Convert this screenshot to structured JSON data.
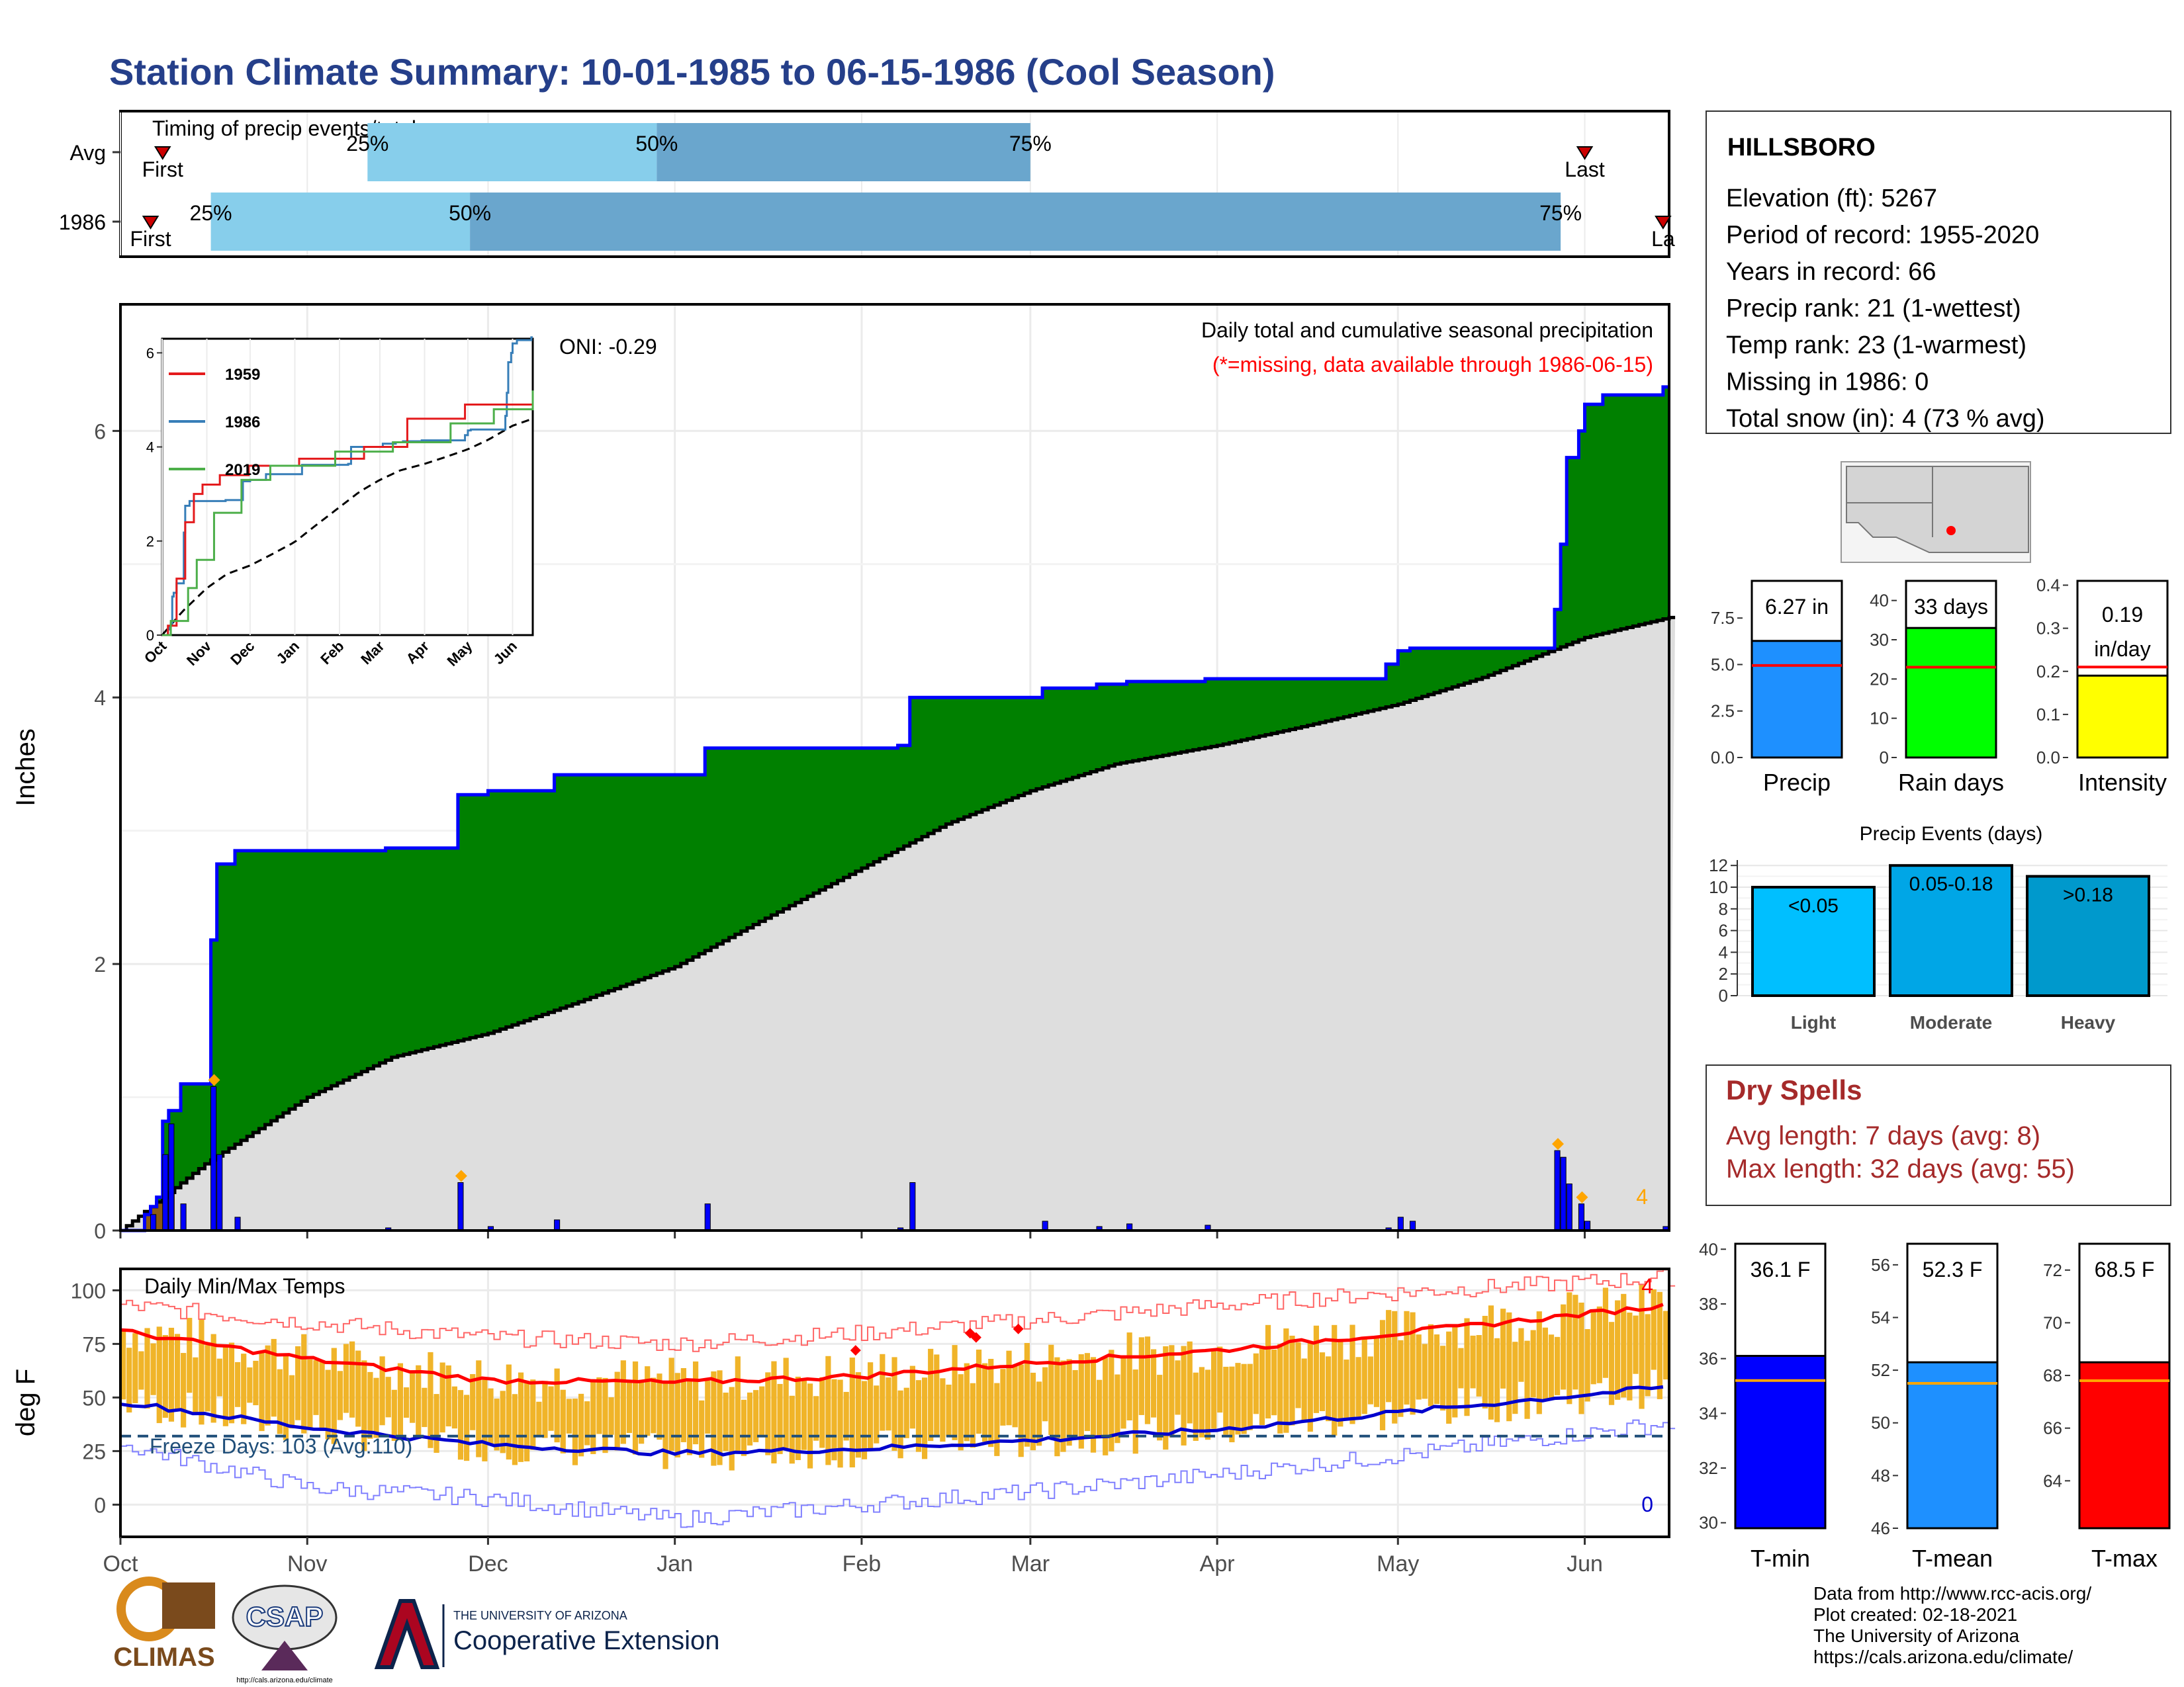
{
  "title": "Station Climate Summary: 10-01-1985 to 06-15-1986 (Cool Season)",
  "months": [
    "Oct",
    "Nov",
    "Dec",
    "Jan",
    "Feb",
    "Mar",
    "Apr",
    "May",
    "Jun"
  ],
  "colors": {
    "title": "#253f8a",
    "green": "#008000",
    "blue": "#0000ff",
    "gray": "#dedede",
    "brown": "#8b5a14",
    "orange": "#ffa500",
    "red": "#ff0000",
    "lightblue": "#87ceeb",
    "midblue": "#6aa6cd",
    "tempbar": "#f0b429",
    "dryred": "#a52a2a",
    "freeze": "#1f4e79"
  },
  "timing": {
    "label": "Timing of precip events/totals",
    "rows": [
      {
        "name": "Avg",
        "first": "First",
        "last": "Last",
        "p25": "25%",
        "p50": "50%",
        "p75": "75%",
        "first_date": "1985-10-08",
        "p25_date": "1985-11-11",
        "p50_date": "1985-12-29",
        "p75_date": "1986-03-01",
        "last_date": "1986-06-01"
      },
      {
        "name": "1986",
        "first": "First",
        "last": "La",
        "p25": "25%",
        "p50": "50%",
        "p75": "75%",
        "first_date": "1985-10-06",
        "p25_date": "1985-10-16",
        "p50_date": "1985-11-28",
        "p75_date": "1986-05-28",
        "last_date": "1986-06-14"
      }
    ]
  },
  "precip_panel": {
    "ylabel": "Inches",
    "heading": "Daily total and cumulative seasonal precipitation",
    "missing_note": "(*=missing, data available through 1986-06-15)",
    "oni": "ONI: -0.29",
    "snow_count": "4",
    "yticks": [
      "0",
      "2",
      "4",
      "6"
    ]
  },
  "inset": {
    "yticks": [
      "0",
      "2",
      "4",
      "6"
    ],
    "months": [
      "Oct",
      "Nov",
      "Dec",
      "Jan",
      "Feb",
      "Mar",
      "Apr",
      "May",
      "Jun"
    ],
    "legend": [
      {
        "name": "1959",
        "color": "#e41a1c"
      },
      {
        "name": "1986",
        "color": "#377eb8"
      },
      {
        "name": "2019",
        "color": "#4daf4a"
      }
    ]
  },
  "temp_panel": {
    "ylabel": "deg F",
    "heading": "Daily Min/Max Temps",
    "freeze_text": "Freeze Days: 103 (Avg:110)",
    "max_record_count": "4",
    "min_record_count": "0",
    "yticks": [
      "0",
      "25",
      "50",
      "75",
      "100"
    ]
  },
  "station": {
    "name": "HILLSBORO",
    "lines": [
      "Elevation (ft): 5267",
      "Period of record: 1955-2020",
      "Years in record: 66",
      "Precip rank: 21 (1-wettest)",
      "Temp rank: 23 (1-warmest)",
      "Missing in 1986: 0",
      "Total snow (in): 4 (73 % avg)"
    ]
  },
  "bars": [
    {
      "label": "Precip",
      "value_text": "6.27 in",
      "value": 6.27,
      "avg": 4.95,
      "ticks": [
        "0.0",
        "2.5",
        "5.0",
        "7.5"
      ],
      "ymax": 9.5,
      "color": "#1e90ff"
    },
    {
      "label": "Rain days",
      "value_text": "33 days",
      "value": 33,
      "avg": 23,
      "ticks": [
        "0",
        "10",
        "20",
        "30",
        "40"
      ],
      "ymax": 45,
      "color": "#00ff00"
    },
    {
      "label": "Intensity",
      "value_text": "0.19 in/day",
      "value_line1": "0.19",
      "value_line2": "in/day",
      "value": 0.19,
      "avg": 0.21,
      "ticks": [
        "0.0",
        "0.1",
        "0.2",
        "0.3",
        "0.4"
      ],
      "ymax": 0.41,
      "color": "#ffff00"
    }
  ],
  "events": {
    "title": "Precip Events (days)",
    "ticks": [
      "0",
      "2",
      "4",
      "6",
      "8",
      "10",
      "12"
    ],
    "items": [
      {
        "label": "Light",
        "range": "<0.05",
        "value": 10,
        "color": "#00bfff"
      },
      {
        "label": "Moderate",
        "range": "0.05-0.18",
        "value": 12,
        "color": "#00a6e6"
      },
      {
        "label": "Heavy",
        "range": ">0.18",
        "value": 11,
        "color": "#0099cc"
      }
    ]
  },
  "dry_spells": {
    "title": "Dry Spells",
    "avg": "Avg length: 7 days (avg: 8)",
    "max": "Max length: 32 days (avg: 55)"
  },
  "temps": [
    {
      "label": "T-min",
      "value_text": "36.1 F",
      "value": 36.1,
      "avg": 35.2,
      "ticks": [
        "30",
        "32",
        "34",
        "36",
        "38",
        "40"
      ],
      "ymin": 29.8,
      "ymax": 40.2,
      "color": "#0000ff"
    },
    {
      "label": "T-mean",
      "value_text": "52.3 F",
      "value": 52.3,
      "avg": 51.5,
      "ticks": [
        "46",
        "48",
        "50",
        "52",
        "54",
        "56"
      ],
      "ymin": 46,
      "ymax": 56.8,
      "color": "#1e90ff"
    },
    {
      "label": "T-max",
      "value_text": "68.5 F",
      "value": 68.5,
      "avg": 67.8,
      "ticks": [
        "64",
        "66",
        "68",
        "70",
        "72"
      ],
      "ymin": 62.2,
      "ymax": 73,
      "color": "#ff0000"
    }
  ],
  "footer": {
    "lines": [
      "Data from http://www.rcc-acis.org/",
      "Plot created: 02-18-2021",
      "The University of Arizona",
      "https://cals.arizona.edu/climate/"
    ],
    "logos": {
      "climas": "CLIMAS",
      "csap": "CSAP",
      "csap_url": "http://cals.arizona.edu/climate",
      "ua_small": "THE UNIVERSITY OF ARIZONA",
      "ua_big": "Cooperative Extension"
    }
  },
  "chart_data": [
    {
      "type": "area",
      "title": "Daily total and cumulative seasonal precipitation",
      "ylabel": "Inches",
      "ylim": [
        0,
        6.95
      ],
      "x_range": [
        "1985-10-01",
        "1986-06-15"
      ],
      "series": [
        {
          "name": "1986",
          "steps": [
            [
              "1985-10-01",
              0.0
            ],
            [
              "1985-10-05",
              0.12
            ],
            [
              "1985-10-06",
              0.18
            ],
            [
              "1985-10-07",
              0.25
            ],
            [
              "1985-10-08",
              0.82
            ],
            [
              "1985-10-09",
              0.9
            ],
            [
              "1985-10-11",
              1.1
            ],
            [
              "1985-10-16",
              2.18
            ],
            [
              "1985-10-17",
              2.75
            ],
            [
              "1985-10-20",
              2.85
            ],
            [
              "1985-11-14",
              2.87
            ],
            [
              "1985-11-26",
              3.27
            ],
            [
              "1985-12-01",
              3.3
            ],
            [
              "1985-12-12",
              3.42
            ],
            [
              "1986-01-06",
              3.62
            ],
            [
              "1986-02-07",
              3.64
            ],
            [
              "1986-02-09",
              4.0
            ],
            [
              "1986-03-03",
              4.07
            ],
            [
              "1986-03-12",
              4.1
            ],
            [
              "1986-03-17",
              4.12
            ],
            [
              "1986-03-30",
              4.14
            ],
            [
              "1986-04-29",
              4.25
            ],
            [
              "1986-05-01",
              4.35
            ],
            [
              "1986-05-03",
              4.37
            ],
            [
              "1986-05-27",
              4.66
            ],
            [
              "1986-05-28",
              5.15
            ],
            [
              "1986-05-29",
              5.8
            ],
            [
              "1986-05-31",
              6.0
            ],
            [
              "1986-06-01",
              6.2
            ],
            [
              "1986-06-04",
              6.27
            ],
            [
              "1986-06-14",
              6.33
            ]
          ]
        },
        {
          "name": "Average",
          "points": [
            [
              "1985-10-01",
              0.0
            ],
            [
              "1985-10-15",
              0.5
            ],
            [
              "1985-11-01",
              1.0
            ],
            [
              "1985-11-15",
              1.3
            ],
            [
              "1985-12-01",
              1.48
            ],
            [
              "1985-12-15",
              1.7
            ],
            [
              "1986-01-01",
              1.98
            ],
            [
              "1986-01-15",
              2.32
            ],
            [
              "1986-02-01",
              2.72
            ],
            [
              "1986-02-15",
              3.05
            ],
            [
              "1986-03-01",
              3.3
            ],
            [
              "1986-03-15",
              3.5
            ],
            [
              "1986-04-01",
              3.64
            ],
            [
              "1986-04-15",
              3.78
            ],
            [
              "1986-05-01",
              3.95
            ],
            [
              "1986-05-15",
              4.15
            ],
            [
              "1986-06-01",
              4.45
            ],
            [
              "1986-06-15",
              4.6
            ]
          ]
        }
      ],
      "daily_precip_peaks": [
        {
          "date": "1985-10-06",
          "value": 0.12
        },
        {
          "date": "1985-10-08",
          "value": 0.57
        },
        {
          "date": "1985-10-09",
          "value": 0.8
        },
        {
          "date": "1985-10-11",
          "value": 0.2
        },
        {
          "date": "1985-10-16",
          "value": 1.08
        },
        {
          "date": "1985-10-17",
          "value": 0.57
        },
        {
          "date": "1985-10-20",
          "value": 0.1
        },
        {
          "date": "1985-11-14",
          "value": 0.02
        },
        {
          "date": "1985-11-26",
          "value": 0.36
        },
        {
          "date": "1985-12-01",
          "value": 0.03
        },
        {
          "date": "1985-12-12",
          "value": 0.08
        },
        {
          "date": "1986-01-06",
          "value": 0.2
        },
        {
          "date": "1986-02-07",
          "value": 0.02
        },
        {
          "date": "1986-02-09",
          "value": 0.36
        },
        {
          "date": "1986-03-03",
          "value": 0.07
        },
        {
          "date": "1986-03-12",
          "value": 0.03
        },
        {
          "date": "1986-03-17",
          "value": 0.05
        },
        {
          "date": "1986-03-30",
          "value": 0.04
        },
        {
          "date": "1986-04-29",
          "value": 0.02
        },
        {
          "date": "1986-05-01",
          "value": 0.1
        },
        {
          "date": "1986-05-03",
          "value": 0.07
        },
        {
          "date": "1986-05-27",
          "value": 0.6
        },
        {
          "date": "1986-05-28",
          "value": 0.55
        },
        {
          "date": "1986-05-29",
          "value": 0.35
        },
        {
          "date": "1986-05-31",
          "value": 0.2
        },
        {
          "date": "1986-06-01",
          "value": 0.07
        },
        {
          "date": "1986-06-14",
          "value": 0.03
        }
      ],
      "snow_marks": [
        "1985-10-16",
        "1985-11-26",
        "1986-05-27",
        "1986-05-31"
      ],
      "annotations": [
        "ONI: -0.29",
        "4"
      ]
    },
    {
      "type": "line",
      "title": "Daily Min/Max Temps",
      "ylabel": "deg F",
      "ylim": [
        -15,
        110
      ],
      "freeze_line": 32,
      "series": [
        {
          "name": "Avg max",
          "points": [
            [
              "1985-10-01",
              81
            ],
            [
              "1985-11-01",
              68
            ],
            [
              "1985-12-01",
              58
            ],
            [
              "1986-01-01",
              57
            ],
            [
              "1986-02-01",
              60
            ],
            [
              "1986-03-01",
              66
            ],
            [
              "1986-04-01",
              72
            ],
            [
              "1986-05-01",
              80
            ],
            [
              "1986-06-15",
              93
            ]
          ]
        },
        {
          "name": "Avg min",
          "points": [
            [
              "1985-10-01",
              48
            ],
            [
              "1985-11-01",
              36
            ],
            [
              "1985-12-01",
              28
            ],
            [
              "1986-01-01",
              24
            ],
            [
              "1986-02-01",
              26
            ],
            [
              "1986-03-01",
              30
            ],
            [
              "1986-04-01",
              35
            ],
            [
              "1986-05-01",
              43
            ],
            [
              "1986-06-15",
              55
            ]
          ]
        },
        {
          "name": "Record max",
          "points": [
            [
              "1985-10-01",
              93
            ],
            [
              "1985-11-01",
              85
            ],
            [
              "1985-12-01",
              78
            ],
            [
              "1986-01-01",
              75
            ],
            [
              "1986-02-01",
              80
            ],
            [
              "1986-03-01",
              86
            ],
            [
              "1986-04-01",
              93
            ],
            [
              "1986-05-01",
              99
            ],
            [
              "1986-06-15",
              106
            ]
          ]
        },
        {
          "name": "Record min",
          "points": [
            [
              "1985-10-01",
              28
            ],
            [
              "1985-11-01",
              8
            ],
            [
              "1985-12-01",
              3
            ],
            [
              "1986-01-01",
              -7
            ],
            [
              "1986-02-01",
              0
            ],
            [
              "1986-03-01",
              6
            ],
            [
              "1986-04-01",
              14
            ],
            [
              "1986-05-01",
              23
            ],
            [
              "1986-06-15",
              38
            ]
          ]
        }
      ]
    },
    {
      "type": "bar",
      "categories": [
        "Precip"
      ],
      "values": [
        6.27
      ],
      "average": 4.95,
      "ylim": [
        0,
        9.5
      ]
    },
    {
      "type": "bar",
      "categories": [
        "Rain days"
      ],
      "values": [
        33
      ],
      "average": 23,
      "ylim": [
        0,
        45
      ]
    },
    {
      "type": "bar",
      "categories": [
        "Intensity"
      ],
      "values": [
        0.19
      ],
      "average": 0.21,
      "ylim": [
        0,
        0.41
      ]
    },
    {
      "type": "bar",
      "title": "Precip Events (days)",
      "categories": [
        "Light",
        "Moderate",
        "Heavy"
      ],
      "values": [
        10,
        12,
        11
      ],
      "ylim": [
        0,
        12.5
      ]
    },
    {
      "type": "bar",
      "categories": [
        "T-min"
      ],
      "values": [
        36.1
      ],
      "average": 35.2,
      "ylim": [
        29.8,
        40.2
      ]
    },
    {
      "type": "bar",
      "categories": [
        "T-mean"
      ],
      "values": [
        52.3
      ],
      "average": 51.5,
      "ylim": [
        46,
        56.8
      ]
    },
    {
      "type": "bar",
      "categories": [
        "T-max"
      ],
      "values": [
        68.5
      ],
      "average": 67.8,
      "ylim": [
        62.2,
        73
      ]
    }
  ]
}
